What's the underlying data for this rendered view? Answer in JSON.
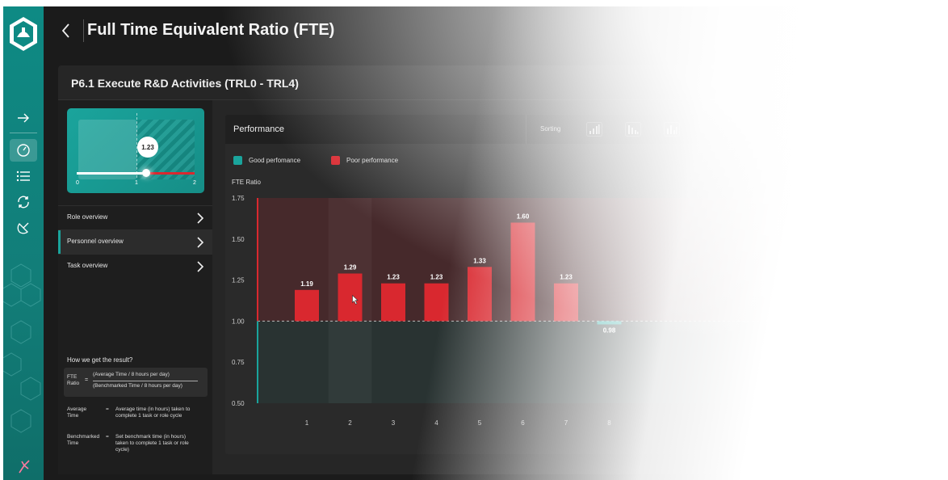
{
  "header": {
    "title": "Full Time Equivalent Ratio (FTE)"
  },
  "card": {
    "title": "P6.1 Execute R&D Activities (TRL0 - TRL4)"
  },
  "preview": {
    "value": "1.23",
    "ticks": [
      "0",
      "1",
      "2"
    ]
  },
  "menu": [
    {
      "label": "Role overview",
      "active": false
    },
    {
      "label": "Personnel overview",
      "active": true
    },
    {
      "label": "Task overview",
      "active": false
    }
  ],
  "formula": {
    "heading": "How we get the result?",
    "lhs_line1": "FTE",
    "lhs_line2": "Ratio",
    "equals": "=",
    "numerator": "(Average Time / 8 hours per day)",
    "denominator": "(Benchmarked Time / 8 hours per day)",
    "defs": [
      {
        "term_line1": "Average",
        "term_line2": "Time",
        "eq": "=",
        "desc": "Average time (in hours) taken to complete 1 task or role cycle"
      },
      {
        "term_line1": "Benchmarked",
        "term_line2": "Time",
        "eq": "=",
        "desc": "Set benchmark time (in hours) taken to complete 1 task or role cycle)"
      }
    ]
  },
  "performance": {
    "title": "Performance",
    "sorting_label": "Sorting",
    "legend": [
      {
        "label": "Good perfomance",
        "color": "#1aa49c"
      },
      {
        "label": "Poor performance",
        "color": "#d9282f"
      }
    ]
  },
  "chart_data": {
    "type": "bar",
    "ylabel": "FTE Ratio",
    "xlabel": "",
    "ylim": [
      0.5,
      1.75
    ],
    "yticks": [
      "1.75",
      "1.50",
      "1.25",
      "1.00",
      "0.75",
      "0.50"
    ],
    "baseline": 1.0,
    "categories": [
      "1",
      "2",
      "3",
      "4",
      "5",
      "6",
      "7",
      "8"
    ],
    "values": [
      1.19,
      1.29,
      1.23,
      1.23,
      1.33,
      1.6,
      1.23,
      0.98
    ],
    "value_labels": [
      "1.19",
      "1.29",
      "1.23",
      "1.23",
      "1.33",
      "1.60",
      "1.23",
      "0.98"
    ],
    "colors": {
      "poor": "#d9282f",
      "good": "#1aa49c"
    }
  }
}
